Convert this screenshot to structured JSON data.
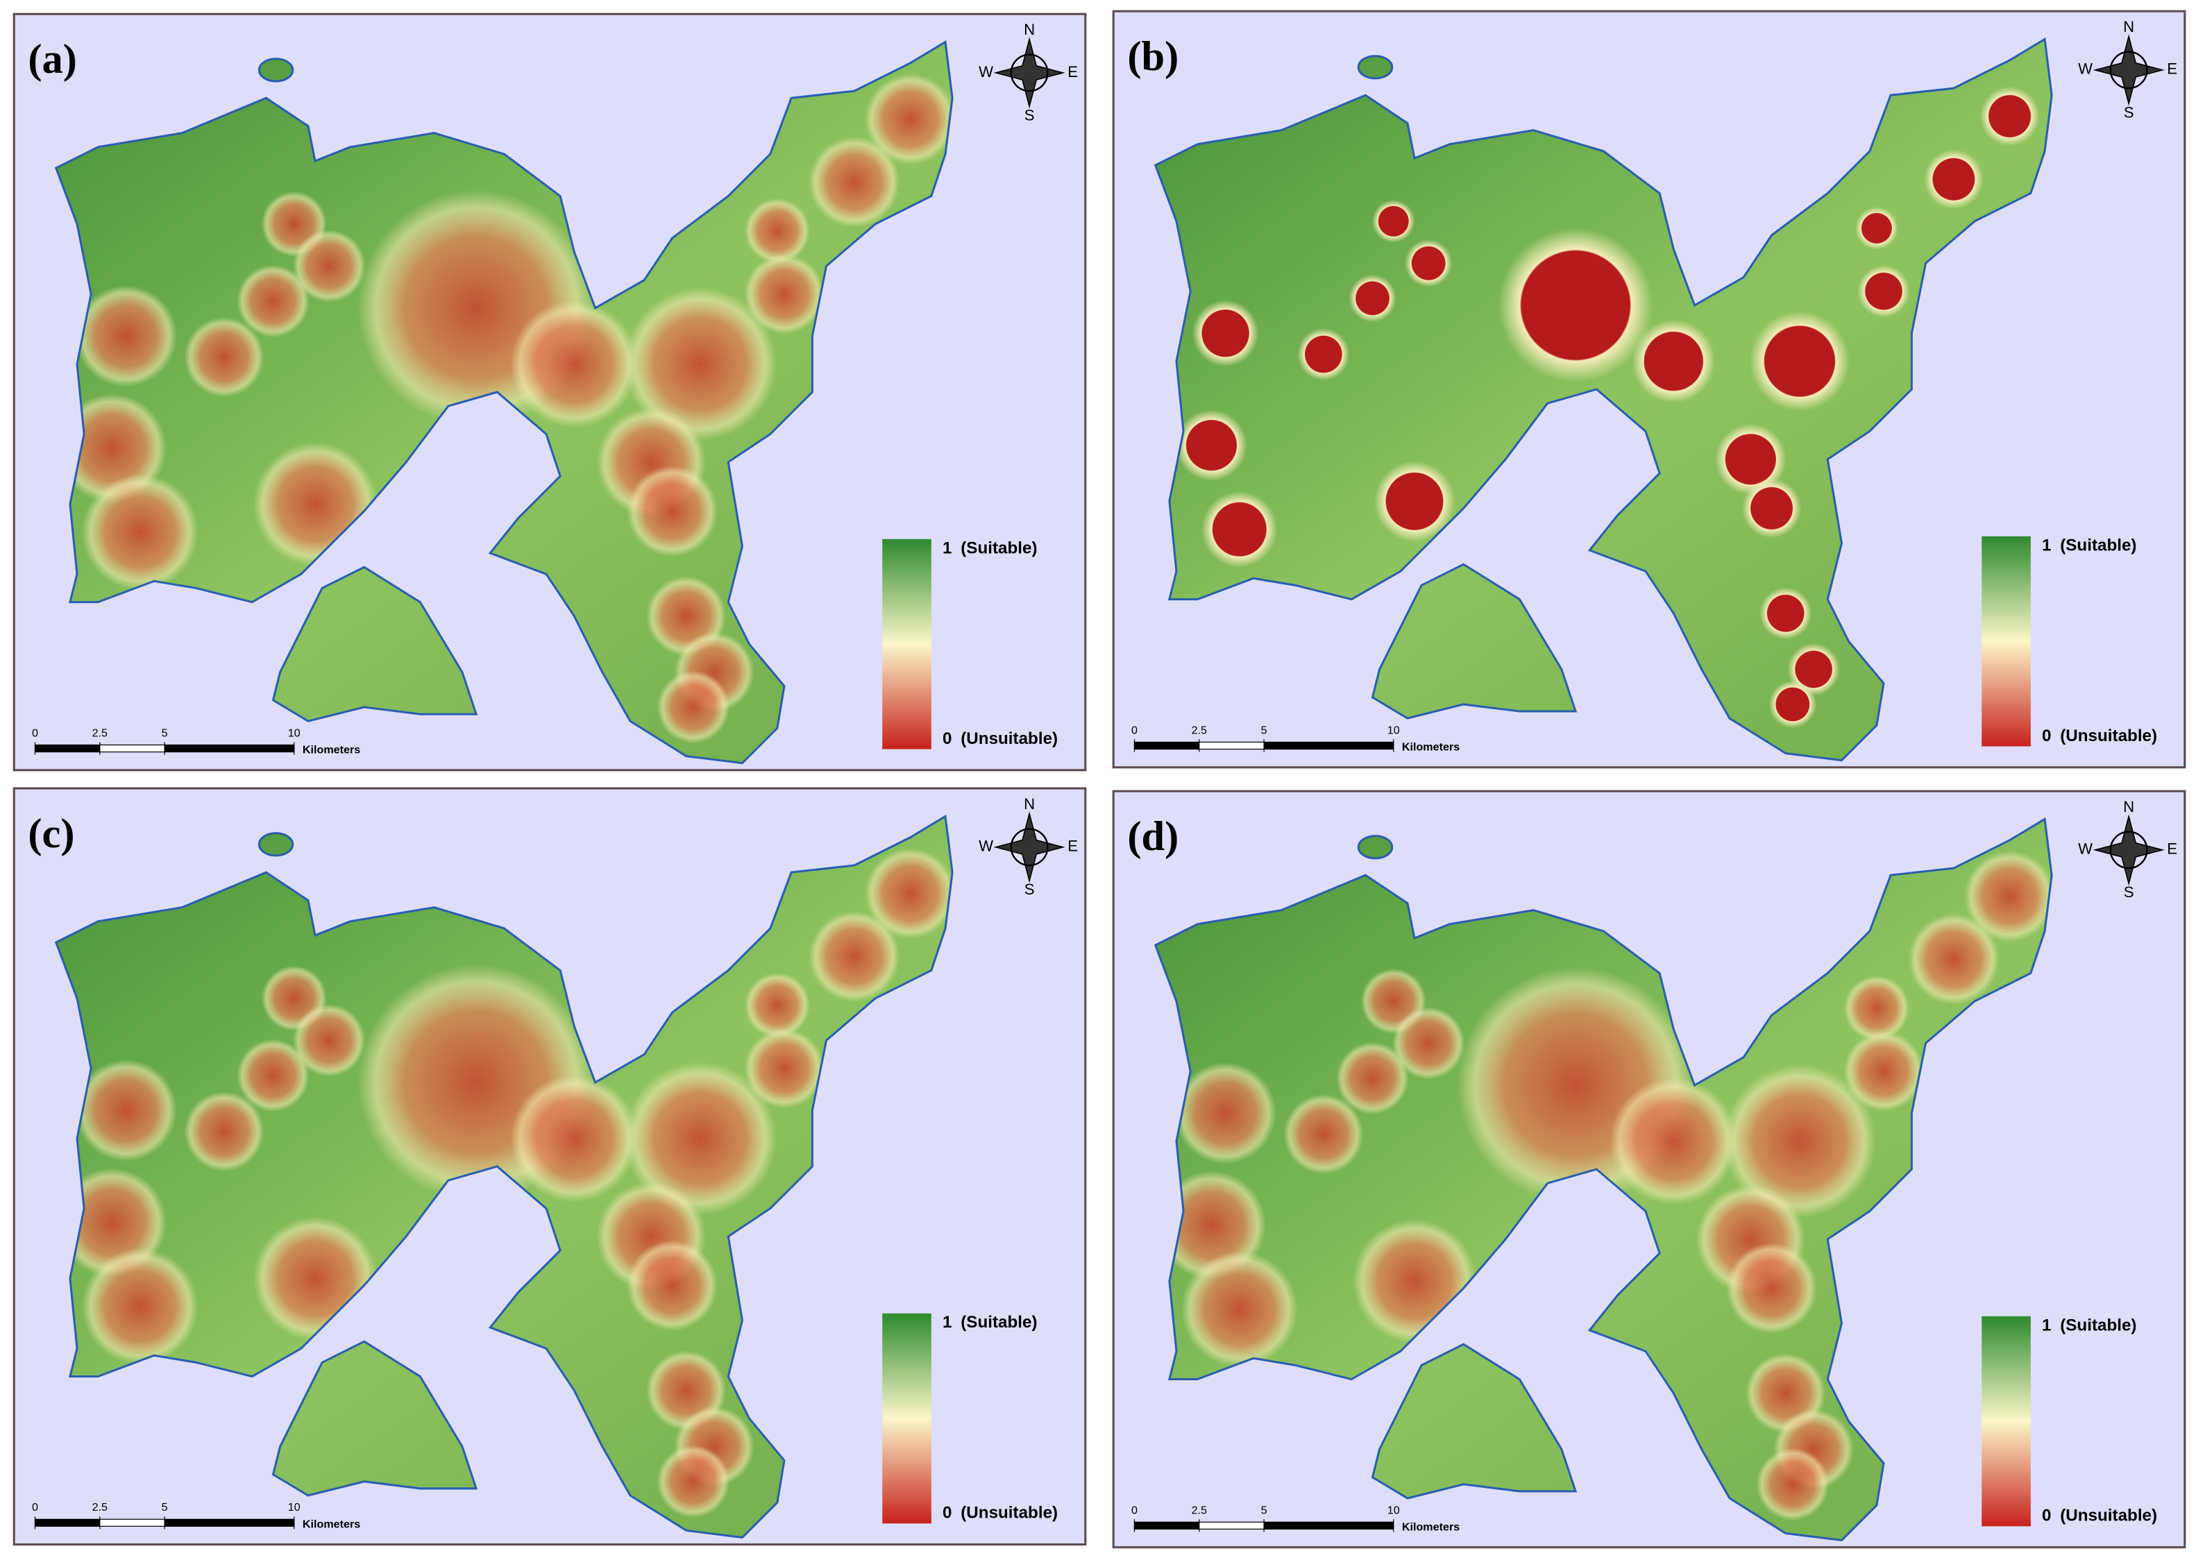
{
  "panels": [
    {
      "label": "(a)"
    },
    {
      "label": "(b)"
    },
    {
      "label": "(c)"
    },
    {
      "label": "(d)"
    }
  ],
  "compass": {
    "n": "N",
    "e": "E",
    "s": "S",
    "w": "W"
  },
  "legend": {
    "high": "1",
    "high_label": "(Suitable)",
    "low": "0",
    "low_label": "(Unsuitable)"
  },
  "scale_bar": {
    "ticks": [
      0,
      2.5,
      5,
      10
    ],
    "unit": "Kilometers"
  }
}
